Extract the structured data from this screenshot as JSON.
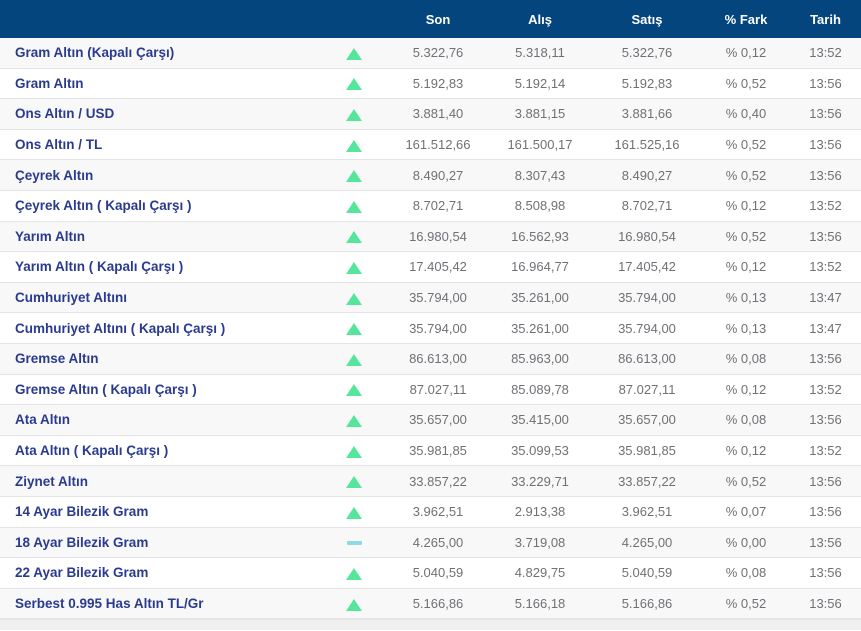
{
  "colors": {
    "header_bg": "#04457d",
    "header_text": "#ffffff",
    "name_text": "#2a3b8f",
    "value_text": "#6e7175",
    "up_green": "#55e59b",
    "flat_blue": "#90d8e4",
    "row_stripe": "#f8f8f9",
    "row_border": "#e4e4e6",
    "footer_bg": "#f0f0f1"
  },
  "header": {
    "son": "Son",
    "alis": "Alış",
    "satis": "Satış",
    "fark": "% Fark",
    "tarih": "Tarih"
  },
  "table": {
    "rows": [
      {
        "name": "Gram Altın (Kapalı Çarşı)",
        "direction": "up",
        "son": "5.322,76",
        "alis": "5.318,11",
        "satis": "5.322,76",
        "fark": "% 0,12",
        "tarih": "13:52"
      },
      {
        "name": "Gram Altın",
        "direction": "up",
        "son": "5.192,83",
        "alis": "5.192,14",
        "satis": "5.192,83",
        "fark": "% 0,52",
        "tarih": "13:56"
      },
      {
        "name": "Ons Altın / USD",
        "direction": "up",
        "son": "3.881,40",
        "alis": "3.881,15",
        "satis": "3.881,66",
        "fark": "% 0,40",
        "tarih": "13:56"
      },
      {
        "name": "Ons Altın / TL",
        "direction": "up",
        "son": "161.512,66",
        "alis": "161.500,17",
        "satis": "161.525,16",
        "fark": "% 0,52",
        "tarih": "13:56"
      },
      {
        "name": "Çeyrek Altın",
        "direction": "up",
        "son": "8.490,27",
        "alis": "8.307,43",
        "satis": "8.490,27",
        "fark": "% 0,52",
        "tarih": "13:56"
      },
      {
        "name": "Çeyrek Altın ( Kapalı Çarşı )",
        "direction": "up",
        "son": "8.702,71",
        "alis": "8.508,98",
        "satis": "8.702,71",
        "fark": "% 0,12",
        "tarih": "13:52"
      },
      {
        "name": "Yarım Altın",
        "direction": "up",
        "son": "16.980,54",
        "alis": "16.562,93",
        "satis": "16.980,54",
        "fark": "% 0,52",
        "tarih": "13:56"
      },
      {
        "name": "Yarım Altın ( Kapalı Çarşı )",
        "direction": "up",
        "son": "17.405,42",
        "alis": "16.964,77",
        "satis": "17.405,42",
        "fark": "% 0,12",
        "tarih": "13:52"
      },
      {
        "name": "Cumhuriyet Altını",
        "direction": "up",
        "son": "35.794,00",
        "alis": "35.261,00",
        "satis": "35.794,00",
        "fark": "% 0,13",
        "tarih": "13:47"
      },
      {
        "name": "Cumhuriyet Altını ( Kapalı Çarşı )",
        "direction": "up",
        "son": "35.794,00",
        "alis": "35.261,00",
        "satis": "35.794,00",
        "fark": "% 0,13",
        "tarih": "13:47"
      },
      {
        "name": "Gremse Altın",
        "direction": "up",
        "son": "86.613,00",
        "alis": "85.963,00",
        "satis": "86.613,00",
        "fark": "% 0,08",
        "tarih": "13:56"
      },
      {
        "name": "Gremse Altın ( Kapalı Çarşı )",
        "direction": "up",
        "son": "87.027,11",
        "alis": "85.089,78",
        "satis": "87.027,11",
        "fark": "% 0,12",
        "tarih": "13:52"
      },
      {
        "name": "Ata Altın",
        "direction": "up",
        "son": "35.657,00",
        "alis": "35.415,00",
        "satis": "35.657,00",
        "fark": "% 0,08",
        "tarih": "13:56"
      },
      {
        "name": "Ata Altın ( Kapalı Çarşı )",
        "direction": "up",
        "son": "35.981,85",
        "alis": "35.099,53",
        "satis": "35.981,85",
        "fark": "% 0,12",
        "tarih": "13:52"
      },
      {
        "name": "Ziynet Altın",
        "direction": "up",
        "son": "33.857,22",
        "alis": "33.229,71",
        "satis": "33.857,22",
        "fark": "% 0,52",
        "tarih": "13:56"
      },
      {
        "name": "14 Ayar Bilezik Gram",
        "direction": "up",
        "son": "3.962,51",
        "alis": "2.913,38",
        "satis": "3.962,51",
        "fark": "% 0,07",
        "tarih": "13:56"
      },
      {
        "name": "18 Ayar Bilezik Gram",
        "direction": "flat",
        "son": "4.265,00",
        "alis": "3.719,08",
        "satis": "4.265,00",
        "fark": "% 0,00",
        "tarih": "13:56"
      },
      {
        "name": "22 Ayar Bilezik Gram",
        "direction": "up",
        "son": "5.040,59",
        "alis": "4.829,75",
        "satis": "5.040,59",
        "fark": "% 0,08",
        "tarih": "13:56"
      },
      {
        "name": "Serbest 0.995 Has Altın TL/Gr",
        "direction": "up",
        "son": "5.166,86",
        "alis": "5.166,18",
        "satis": "5.166,86",
        "fark": "% 0,52",
        "tarih": "13:56"
      }
    ]
  }
}
